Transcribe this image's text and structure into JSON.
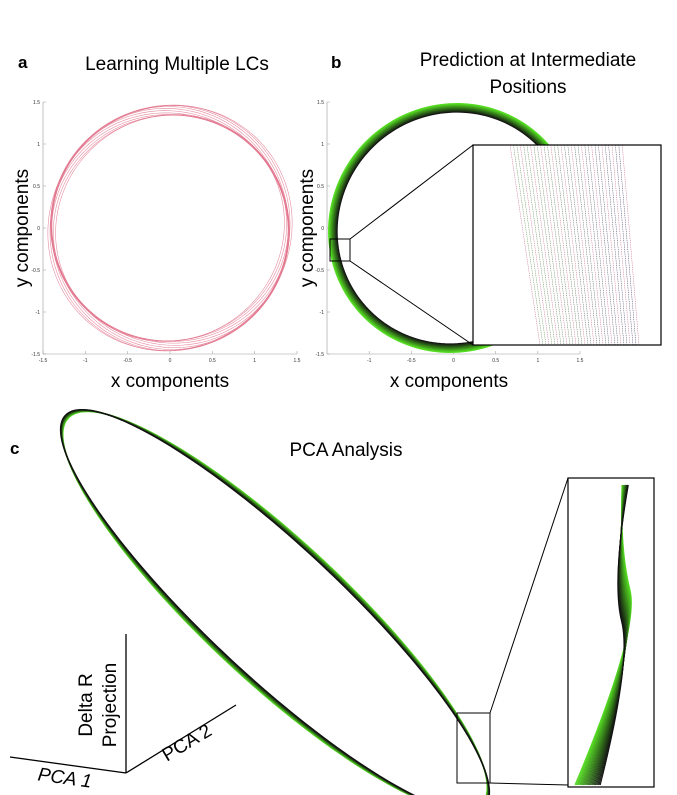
{
  "panel_a": {
    "letter": "a",
    "title": "Learning Multiple LCs",
    "xlabel": "x components",
    "ylabel": "y components"
  },
  "panel_b": {
    "letter": "b",
    "title_line1": "Prediction at Intermediate",
    "title_line2": "Positions",
    "xlabel": "x components",
    "ylabel": "y components"
  },
  "panel_c": {
    "letter": "c",
    "title": "PCA Analysis",
    "axis_vertical_line1": "Delta R",
    "axis_vertical_line2": "Projection",
    "axis_pca1": "PCA 1",
    "axis_pca2": "PCA 2"
  },
  "colors": {
    "red_cycles": "#e07088",
    "green": "#55dd22",
    "dark": "#111111"
  },
  "chart_data": [
    {
      "type": "line",
      "panel": "a",
      "title": "Learning Multiple LCs",
      "xlabel": "x components",
      "ylabel": "y components",
      "xlim": [
        -1.5,
        1.5
      ],
      "ylim": [
        -1.5,
        1.5
      ],
      "xticks": [
        "-1.5",
        "-1",
        "-0.5",
        "0",
        "0.5",
        "1",
        "1.5"
      ],
      "yticks": [
        "1.5",
        "1",
        "0.5",
        "0",
        "-0.5",
        "-1",
        "-1.5"
      ],
      "series_shape": "concentric limit cycles, radius ~1.35–1.45",
      "radii": [
        1.35,
        1.36,
        1.37,
        1.38,
        1.39,
        1.4,
        1.41,
        1.42,
        1.43,
        1.44,
        1.45
      ],
      "grid": false
    },
    {
      "type": "line",
      "panel": "b",
      "title": "Prediction at Intermediate Positions",
      "xlabel": "x components",
      "ylabel": "y components",
      "xlim": [
        -1.5,
        1.5
      ],
      "ylim": [
        -1.5,
        1.5
      ],
      "xticks": [
        "-1",
        "-0.5",
        "0",
        "0.5",
        "1",
        "1.5"
      ],
      "yticks": [
        "1.5",
        "1",
        "0.5",
        "0",
        "-0.5",
        "-1",
        "-1.5"
      ],
      "series_shape": "black-to-green family of limit cycles, radius ~1.38–1.48",
      "radii": [
        1.38,
        1.39,
        1.4,
        1.41,
        1.42,
        1.43,
        1.44,
        1.45,
        1.46,
        1.47,
        1.48
      ],
      "inset": true,
      "grid": false
    },
    {
      "type": "line",
      "panel": "c",
      "title": "PCA Analysis",
      "axes": [
        "PCA 1",
        "PCA 2",
        "Delta R Projection"
      ],
      "series_shape": "tilted ellipse band, black-to-green",
      "inset": true
    }
  ]
}
